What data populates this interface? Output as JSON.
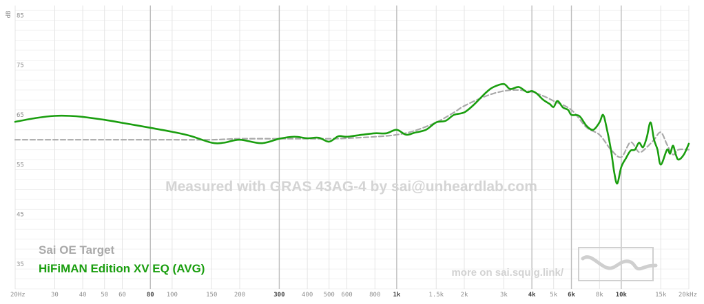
{
  "chart_data": {
    "type": "line",
    "ylabel": "dB",
    "xscale": "log",
    "xlim": [
      20,
      20000
    ],
    "ylim": [
      30,
      87
    ],
    "grid": true,
    "legend_position": "bottom-left",
    "x_ticks": [
      {
        "value": 20,
        "label": "20Hz",
        "major": false
      },
      {
        "value": 30,
        "label": "30",
        "major": false
      },
      {
        "value": 40,
        "label": "40",
        "major": false
      },
      {
        "value": 50,
        "label": "50",
        "major": false
      },
      {
        "value": 60,
        "label": "60",
        "major": false
      },
      {
        "value": 80,
        "label": "80",
        "major": true
      },
      {
        "value": 100,
        "label": "100",
        "major": false
      },
      {
        "value": 150,
        "label": "150",
        "major": false
      },
      {
        "value": 200,
        "label": "200",
        "major": false
      },
      {
        "value": 300,
        "label": "300",
        "major": true
      },
      {
        "value": 400,
        "label": "400",
        "major": false
      },
      {
        "value": 500,
        "label": "500",
        "major": false
      },
      {
        "value": 600,
        "label": "600",
        "major": false
      },
      {
        "value": 800,
        "label": "800",
        "major": false
      },
      {
        "value": 1000,
        "label": "1k",
        "major": true
      },
      {
        "value": 1500,
        "label": "1.5k",
        "major": false
      },
      {
        "value": 2000,
        "label": "2k",
        "major": false
      },
      {
        "value": 3000,
        "label": "3k",
        "major": false
      },
      {
        "value": 4000,
        "label": "4k",
        "major": true
      },
      {
        "value": 5000,
        "label": "5k",
        "major": false
      },
      {
        "value": 6000,
        "label": "6k",
        "major": true
      },
      {
        "value": 8000,
        "label": "8k",
        "major": false
      },
      {
        "value": 10000,
        "label": "10k",
        "major": true
      },
      {
        "value": 15000,
        "label": "15k",
        "major": false
      },
      {
        "value": 20000,
        "label": "20kHz",
        "major": false
      }
    ],
    "y_ticks": [
      85,
      75,
      65,
      55,
      45,
      35
    ],
    "series": [
      {
        "name": "Sai OE Target",
        "color": "#a9a9a9",
        "style": "dashed",
        "x": [
          20,
          30,
          50,
          80,
          100,
          150,
          200,
          300,
          400,
          500,
          600,
          800,
          1000,
          1200,
          1500,
          1800,
          2000,
          2500,
          3000,
          3500,
          4000,
          4500,
          5000,
          6000,
          7000,
          8000,
          9000,
          10000,
          11000,
          12000,
          13000,
          14000,
          15000,
          16000,
          17000,
          18000,
          20000
        ],
        "y": [
          60.0,
          60.0,
          60.0,
          60.0,
          60.0,
          60.0,
          60.2,
          60.2,
          60.2,
          60.2,
          60.3,
          60.6,
          61.0,
          61.8,
          63.5,
          65.5,
          66.8,
          68.8,
          69.8,
          70.0,
          69.6,
          68.8,
          67.8,
          66.0,
          62.5,
          61.0,
          58.0,
          56.5,
          59.5,
          57.5,
          58.5,
          60.0,
          61.5,
          59.0,
          57.0,
          58.0,
          58.0
        ]
      },
      {
        "name": "HiFiMAN Edition XV EQ (AVG)",
        "color": "#1a9e0f",
        "style": "solid",
        "x": [
          20,
          25,
          30,
          35,
          40,
          50,
          60,
          80,
          100,
          120,
          150,
          170,
          200,
          250,
          300,
          350,
          400,
          450,
          500,
          550,
          600,
          700,
          800,
          900,
          1000,
          1100,
          1200,
          1350,
          1500,
          1650,
          1800,
          2000,
          2200,
          2500,
          2700,
          3000,
          3200,
          3500,
          3800,
          4000,
          4200,
          4500,
          4800,
          5000,
          5200,
          5500,
          5800,
          6000,
          6500,
          7000,
          7500,
          8000,
          8300,
          8600,
          9000,
          9300,
          9600,
          10000,
          10500,
          11000,
          11500,
          12000,
          12500,
          13000,
          13500,
          14000,
          14500,
          15000,
          16000,
          16500,
          17000,
          17500,
          18000,
          19000,
          20000
        ],
        "y": [
          63.6,
          64.4,
          64.8,
          64.8,
          64.6,
          64.0,
          63.4,
          62.4,
          61.6,
          60.8,
          59.4,
          59.4,
          60.0,
          59.3,
          60.2,
          60.6,
          60.3,
          60.4,
          59.6,
          60.7,
          60.6,
          61.0,
          61.3,
          61.3,
          62.0,
          61.0,
          61.4,
          62.0,
          63.5,
          63.8,
          65.0,
          65.5,
          67.0,
          69.5,
          70.6,
          71.2,
          70.2,
          70.6,
          69.6,
          69.8,
          69.3,
          68.0,
          67.2,
          66.6,
          67.8,
          66.5,
          66.0,
          65.0,
          64.8,
          62.8,
          62.0,
          63.5,
          65.0,
          62.5,
          58.0,
          53.5,
          51.2,
          54.5,
          56.3,
          57.8,
          58.0,
          59.4,
          58.5,
          60.5,
          63.5,
          60.0,
          58.0,
          55.0,
          58.0,
          57.2,
          58.8,
          57.0,
          56.0,
          57.0,
          59.2
        ]
      }
    ],
    "watermark": "Measured with GRAS 43AG-4 by sai@unheardlab.com",
    "footer_link": "more on sai.squig.link/"
  }
}
